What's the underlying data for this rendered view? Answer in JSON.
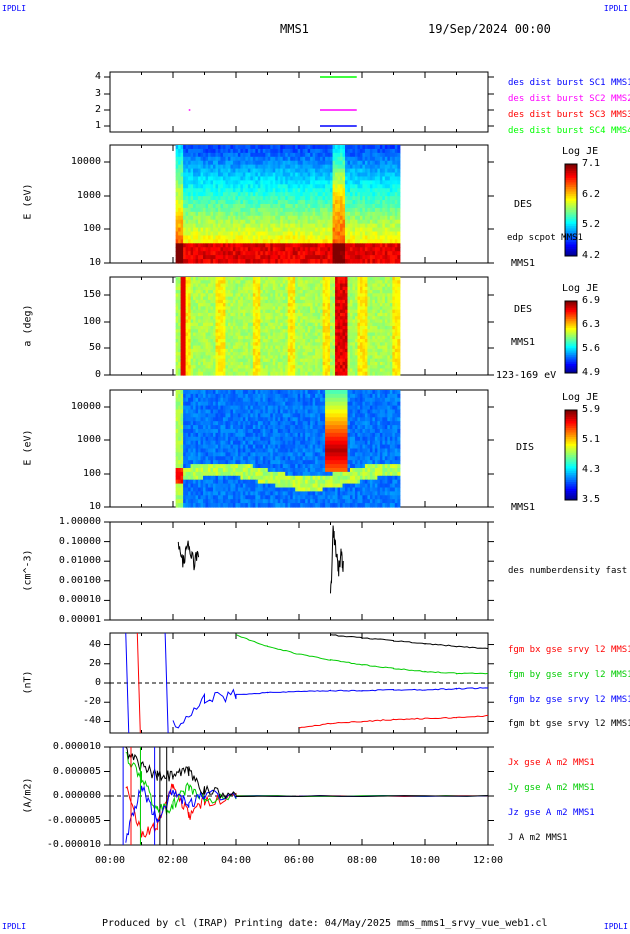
{
  "header": {
    "corner": "IPDLI",
    "title": "MMS1",
    "datetime": "19/Sep/2024 00:00"
  },
  "footer": {
    "text": "Produced by cl (IRAP)   Printing date: 04/May/2025   mms_mms1_srvy_vue_web1.cl"
  },
  "chart_data": [
    {
      "type": "line",
      "panel": "burst",
      "yticks": [
        "1",
        "2",
        "3",
        "4"
      ],
      "legend": [
        {
          "name": "des dist burst SC1 MMS1",
          "color": "#0000ff"
        },
        {
          "name": "des dist burst SC2 MMS2",
          "color": "#ff00ff"
        },
        {
          "name": "des dist burst SC3 MMS3",
          "color": "#ff0000"
        },
        {
          "name": "des dist burst SC4 MMS4",
          "color": "#00ff00"
        }
      ],
      "segments": [
        {
          "sc": 4,
          "from": "06:40",
          "to": "07:50"
        },
        {
          "sc": 2,
          "from": "02:30",
          "to": "02:33"
        },
        {
          "sc": 2,
          "from": "06:40",
          "to": "07:50"
        },
        {
          "sc": 1,
          "from": "06:40",
          "to": "07:50"
        }
      ]
    },
    {
      "type": "heatmap",
      "panel": "des-energy",
      "ylabel": "E (eV)",
      "yscale": "log",
      "yticks": [
        "10",
        "100",
        "1000",
        "10000"
      ],
      "label": "DES",
      "sublabel": "edp scpot MMS1",
      "footlabel": "MMS1",
      "colorbar": {
        "title": "Log JE",
        "ticks": [
          "7.1",
          "6.2",
          "5.2",
          "4.2"
        ]
      }
    },
    {
      "type": "heatmap",
      "panel": "des-pitch",
      "ylabel": "a (deg)",
      "yticks": [
        "0",
        "50",
        "100",
        "150"
      ],
      "label": "DES",
      "sublabel": "MMS1",
      "footlabel": "123-169 eV",
      "colorbar": {
        "title": "Log JE",
        "ticks": [
          "6.9",
          "6.3",
          "5.6",
          "4.9"
        ]
      }
    },
    {
      "type": "heatmap",
      "panel": "dis-energy",
      "ylabel": "E (eV)",
      "yscale": "log",
      "yticks": [
        "10",
        "100",
        "1000",
        "10000"
      ],
      "label": "DIS",
      "footlabel": "MMS1",
      "colorbar": {
        "title": "Log JE",
        "ticks": [
          "5.9",
          "5.1",
          "4.3",
          "3.5"
        ]
      }
    },
    {
      "type": "line",
      "panel": "density",
      "ylabel": "(cm^-3)",
      "yscale": "log",
      "yticks": [
        "1.00000",
        "0.10000",
        "0.01000",
        "0.00100",
        "0.00010",
        "0.00001"
      ],
      "legend": [
        {
          "name": "des numberdensity fast M",
          "color": "#000000"
        }
      ],
      "series": [
        {
          "x": [
            "02:10",
            "02:20",
            "02:30",
            "02:40",
            "02:50"
          ],
          "y": [
            0.05,
            0.01,
            0.06,
            0.008,
            0.04
          ]
        },
        {
          "x": [
            "07:00",
            "07:05",
            "07:10",
            "07:15",
            "07:20",
            "07:25"
          ],
          "y": [
            0.0001,
            0.3,
            0.05,
            0.003,
            0.02,
            0.005
          ]
        }
      ]
    },
    {
      "type": "line",
      "panel": "fgm",
      "ylabel": "(nT)",
      "yticks": [
        "40",
        "20",
        "0",
        "-20",
        "-40"
      ],
      "ylim": [
        -52,
        52
      ],
      "x": [
        "02:00",
        "03:00",
        "04:00",
        "05:00",
        "06:00",
        "07:00",
        "08:00",
        "09:00",
        "10:00",
        "11:00",
        "12:00"
      ],
      "series": [
        {
          "name": "fgm bx gse srvy l2 MMS1",
          "color": "#ff0000",
          "values": [
            null,
            null,
            null,
            null,
            -47,
            -42,
            -40,
            -38,
            -37,
            -36,
            -34
          ]
        },
        {
          "name": "fgm by gse srvy l2 MMS1",
          "color": "#00cc00",
          "values": [
            null,
            null,
            50,
            38,
            30,
            24,
            19,
            15,
            12,
            10,
            10
          ]
        },
        {
          "name": "fgm bz gse srvy l2 MMS1",
          "color": "#0000ff",
          "values": [
            -45,
            -18,
            -12,
            -10,
            -9,
            -8,
            -8,
            -7,
            -7,
            -6,
            -5
          ]
        },
        {
          "name": "fgm bt gse srvy l2 MMS1",
          "color": "#000000",
          "values": [
            null,
            null,
            null,
            null,
            null,
            50,
            47,
            44,
            41,
            38,
            36
          ]
        }
      ]
    },
    {
      "type": "line",
      "panel": "current",
      "ylabel": "(A/m2)",
      "yticks": [
        "0.000010",
        "0.000005",
        "0.000000",
        "-0.000005",
        "-0.000010"
      ],
      "ylim": [
        -1e-05,
        1e-05
      ],
      "x": [
        "00:30",
        "01:00",
        "01:30",
        "02:00",
        "02:30",
        "03:00",
        "04:00",
        "12:00"
      ],
      "series": [
        {
          "name": "Jx gse A m2 MMS1",
          "color": "#ff0000",
          "values": [
            2e-06,
            -8e-06,
            -6e-06,
            2e-06,
            -4e-06,
            -1e-06,
            0,
            0
          ]
        },
        {
          "name": "Jy gse A m2 MMS1",
          "color": "#00cc00",
          "values": [
            8e-06,
            4e-06,
            -3e-06,
            -2e-06,
            2e-06,
            -1e-06,
            0,
            0
          ]
        },
        {
          "name": "Jz gse A m2 MMS1",
          "color": "#0000ff",
          "values": [
            -9e-06,
            2e-06,
            -5e-06,
            1e-06,
            -2e-06,
            5e-07,
            0,
            0
          ]
        },
        {
          "name": "J A m2 MMS1",
          "color": "#000000",
          "values": [
            9e-06,
            6e-06,
            4e-06,
            4e-06,
            5e-06,
            1e-06,
            0,
            0
          ]
        }
      ]
    }
  ],
  "xaxis": {
    "ticks": [
      "00:00",
      "02:00",
      "04:00",
      "06:00",
      "08:00",
      "10:00",
      "12:00"
    ]
  }
}
